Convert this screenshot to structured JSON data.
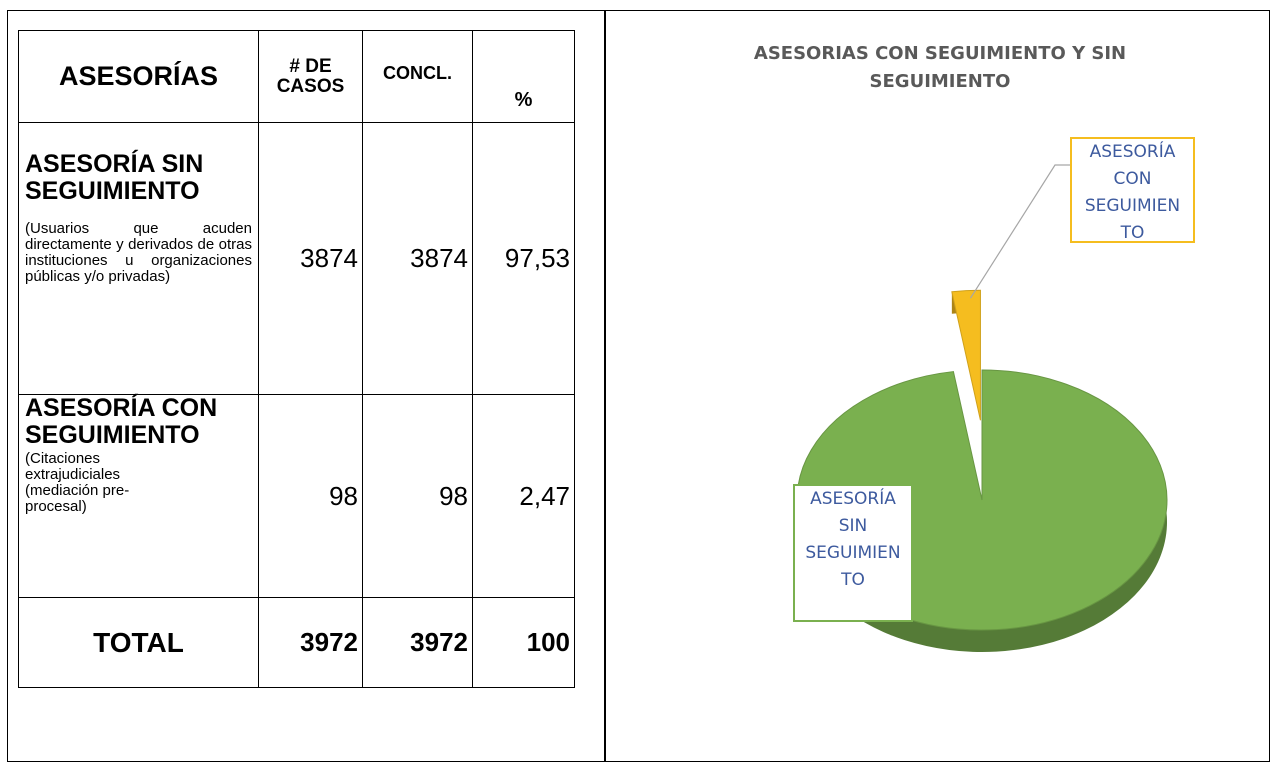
{
  "table": {
    "header": [
      "ASESORÍAS",
      "# DE CASOS",
      "CONCL.",
      "%"
    ],
    "rows": [
      {
        "label": "ASESORÍA SIN SEGUIMIENTO",
        "note": "(Usuarios que acuden directamente y derivados de otras instituciones u organizaciones públicas y/o privadas)",
        "cells": [
          "3874",
          "3874",
          "97,53"
        ]
      },
      {
        "label": "ASESORÍA CON SEGUIMIENTO",
        "note": "(Citaciones extrajudiciales (mediación pre-procesal)",
        "cells": [
          "98",
          "98",
          "2,47"
        ]
      }
    ],
    "total": {
      "label": "TOTAL",
      "cells": [
        "3972",
        "3972",
        "100"
      ]
    }
  },
  "chart_data": {
    "type": "pie",
    "title": "ASESORIAS CON SEGUIMIENTO Y SIN SEGUIMIENTO",
    "categories": [
      "ASESORÍA CON SEGUIMIENTO",
      "ASESORÍA SIN SEGUIMIENTO"
    ],
    "values": [
      2.47,
      97.53
    ],
    "colors": [
      "#f5bd1f",
      "#7ab04f"
    ]
  }
}
